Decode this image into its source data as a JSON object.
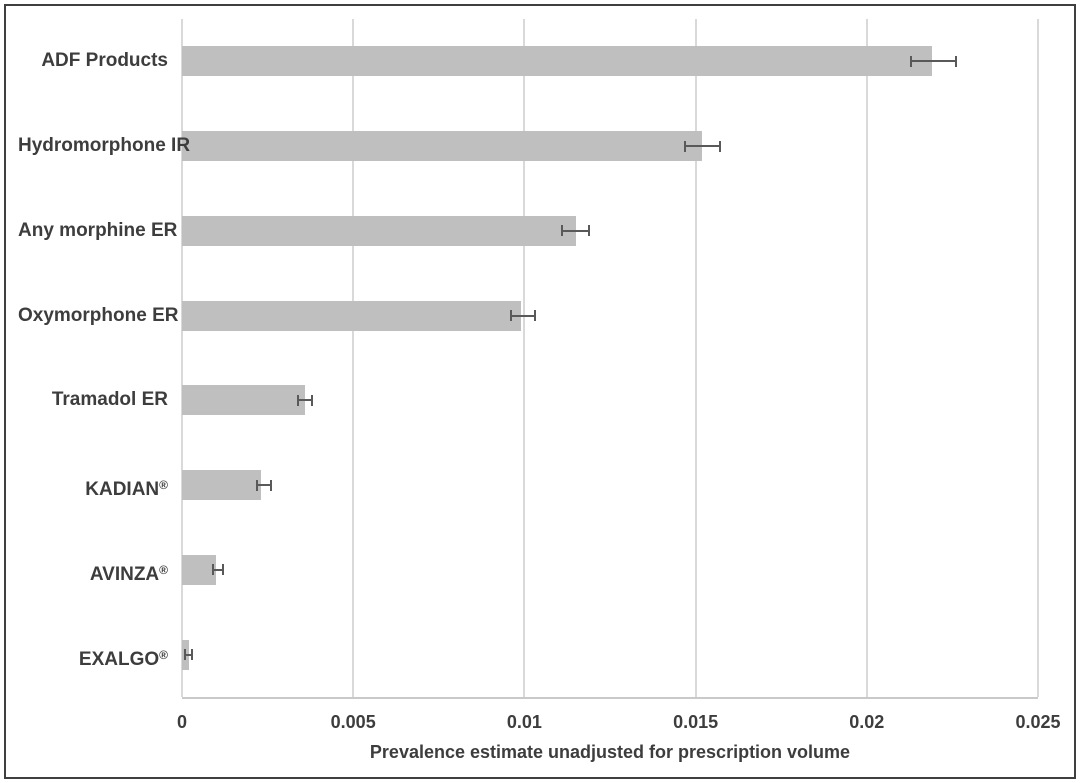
{
  "chart_data": {
    "type": "bar",
    "orientation": "horizontal",
    "title": "",
    "xlabel": "Prevalence estimate unadjusted for prescription volume",
    "ylabel": "",
    "xlim": [
      0,
      0.025
    ],
    "xticks": [
      0,
      0.005,
      0.01,
      0.015,
      0.02,
      0.025
    ],
    "xtick_labels": [
      "0",
      "0.005",
      "0.01",
      "0.015",
      "0.02",
      "0.025"
    ],
    "grid": "vertical-gridlines-on",
    "legend": "none",
    "categories": [
      "ADF Products",
      "Hydromorphone IR",
      "Any morphine ER",
      "Oxymorphone ER",
      "Tramadol ER",
      "KADIAN®",
      "AVINZA®",
      "EXALGO®"
    ],
    "values": [
      0.0219,
      0.0152,
      0.0115,
      0.0099,
      0.0036,
      0.0023,
      0.001,
      0.0002
    ],
    "error_low": [
      0.0213,
      0.0147,
      0.0111,
      0.0096,
      0.0034,
      0.0022,
      0.0009,
      0.0001
    ],
    "error_high": [
      0.0226,
      0.0157,
      0.0119,
      0.0103,
      0.0038,
      0.0026,
      0.0012,
      0.0003
    ],
    "colors": {
      "bar": "#bfbfbf",
      "error_bar": "#595959",
      "gridline": "#d9d9d9",
      "axis_line": "#c9c9c9",
      "text": "#3d3d3d",
      "frame_border": "#3f3f3f"
    }
  }
}
